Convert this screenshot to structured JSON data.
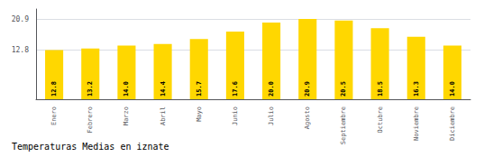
{
  "chart_data": {
    "type": "bar",
    "title": "Temperaturas Medias en iznate",
    "categories": [
      "Enero",
      "Febrero",
      "Marzo",
      "Abril",
      "Mayo",
      "Junio",
      "Julio",
      "Agosto",
      "Septiembre",
      "Octubre",
      "Noviembre",
      "Diciembre"
    ],
    "values": [
      12.8,
      13.2,
      14.0,
      14.4,
      15.7,
      17.6,
      20.0,
      20.9,
      20.5,
      18.5,
      16.3,
      14.0
    ],
    "value_labels": [
      "12.8",
      "13.2",
      "14.0",
      "14.4",
      "15.7",
      "17.6",
      "20.0",
      "20.9",
      "20.5",
      "18.5",
      "16.3",
      "14.0"
    ],
    "color": "#FFD700",
    "ylim": [
      0,
      23.5
    ],
    "yticks": [
      12.8,
      20.9
    ],
    "grid": true,
    "data_labels": true
  }
}
